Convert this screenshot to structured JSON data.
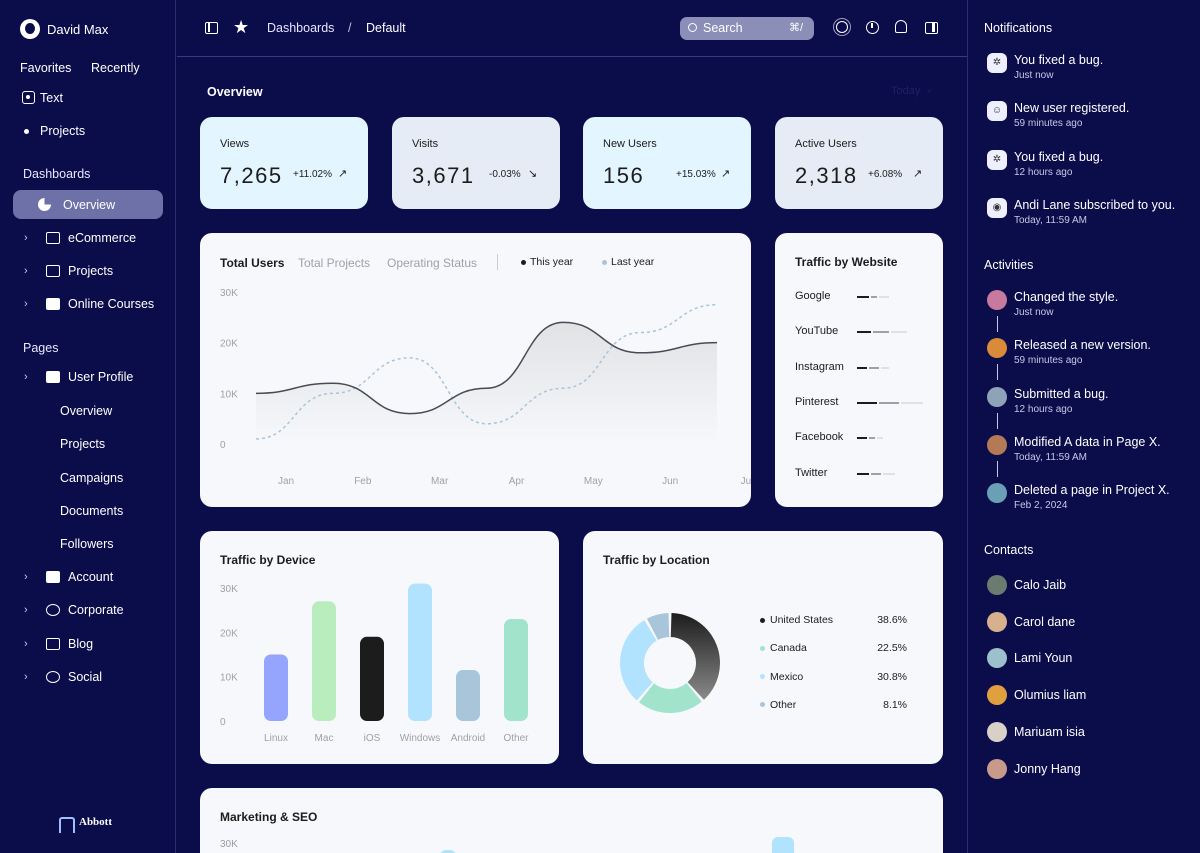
{
  "user": {
    "name": "David Max"
  },
  "sidebar": {
    "tabs": [
      "Favorites",
      "Recently"
    ],
    "favorites": [
      "Text",
      "Projects"
    ],
    "dash_title": "Dashboards",
    "dash_items": [
      "Overview",
      "eCommerce",
      "Projects",
      "Online Courses"
    ],
    "pages_title": "Pages",
    "pages_items": [
      "User Profile",
      "Overview",
      "Projects",
      "Campaigns",
      "Documents",
      "Followers",
      "Account",
      "Corporate",
      "Blog",
      "Social"
    ],
    "brand": "Abbott"
  },
  "topbar": {
    "crumb1": "Dashboards",
    "sep": "/",
    "crumb2": "Default",
    "search": "Search",
    "shortcut": "⌘/"
  },
  "overview": {
    "title": "Overview",
    "range": "Today"
  },
  "stats": [
    {
      "label": "Views",
      "value": "7,265",
      "change": "+11.02%",
      "trend": "up",
      "bg": "#e3f5ff"
    },
    {
      "label": "Visits",
      "value": "3,671",
      "change": "-0.03%",
      "trend": "down",
      "bg": "#e5ecf6"
    },
    {
      "label": "New Users",
      "value": "156",
      "change": "+15.03%",
      "trend": "up",
      "bg": "#e3f5ff"
    },
    {
      "label": "Active Users",
      "value": "2,318",
      "change": "+6.08%",
      "trend": "up",
      "bg": "#e5ecf6"
    }
  ],
  "users_chart": {
    "tabs": [
      "Total Users",
      "Total Projects",
      "Operating Status"
    ],
    "legend": [
      "This year",
      "Last year"
    ]
  },
  "website": {
    "title": "Traffic by Website",
    "sites": [
      "Google",
      "YouTube",
      "Instagram",
      "Pinterest",
      "Facebook",
      "Twitter"
    ]
  },
  "device": {
    "title": "Traffic by Device"
  },
  "location": {
    "title": "Traffic by Location",
    "rows": [
      {
        "name": "United States",
        "pct": "38.6%",
        "color": "#1c1c1c"
      },
      {
        "name": "Canada",
        "pct": "22.5%",
        "color": "#a1e3cb"
      },
      {
        "name": "Mexico",
        "pct": "30.8%",
        "color": "#b1e3ff"
      },
      {
        "name": "Other",
        "pct": "8.1%",
        "color": "#a8c5da"
      }
    ]
  },
  "seo": {
    "title": "Marketing & SEO",
    "ytick": "30K"
  },
  "notifications": {
    "title": "Notifications",
    "items": [
      {
        "text": "You fixed a bug.",
        "time": "Just now",
        "icon": "bug-icon"
      },
      {
        "text": "New user registered.",
        "time": "59 minutes ago",
        "icon": "user-icon"
      },
      {
        "text": "You fixed a bug.",
        "time": "12 hours ago",
        "icon": "bug-icon"
      },
      {
        "text": "Andi Lane subscribed to you.",
        "time": "Today, 11:59 AM",
        "icon": "broadcast-icon"
      }
    ]
  },
  "activities": {
    "title": "Activities",
    "items": [
      {
        "text": "Changed the style.",
        "time": "Just now",
        "color": "#c77a9e"
      },
      {
        "text": "Released a new version.",
        "time": "59 minutes ago",
        "color": "#d98b3a"
      },
      {
        "text": "Submitted a bug.",
        "time": "12 hours ago",
        "color": "#8ea2b8"
      },
      {
        "text": "Modified A data in Page X.",
        "time": "Today, 11:59 AM",
        "color": "#b37a55"
      },
      {
        "text": "Deleted a page in Project X.",
        "time": "Feb 2, 2024",
        "color": "#6aa0b5"
      }
    ]
  },
  "contacts": {
    "title": "Contacts",
    "items": [
      {
        "name": "Calo Jaib",
        "color": "#6b7b70"
      },
      {
        "name": "Carol dane",
        "color": "#d7b08e"
      },
      {
        "name": "Lami Youn",
        "color": "#9cc0cc"
      },
      {
        "name": "Olumius liam",
        "color": "#e0a040"
      },
      {
        "name": "Mariuam isia",
        "color": "#d9d0c8"
      },
      {
        "name": "Jonny Hang",
        "color": "#c79a8a"
      }
    ]
  },
  "chart_data": [
    {
      "type": "line",
      "title": "Total Users",
      "x": [
        "Jan",
        "Feb",
        "Mar",
        "Apr",
        "May",
        "Jun",
        "Jul"
      ],
      "ylim": [
        0,
        30000
      ],
      "yticks": [
        "0",
        "10K",
        "20K",
        "30K"
      ],
      "series": [
        {
          "name": "This year",
          "values": [
            10000,
            12000,
            6000,
            11000,
            24000,
            18000,
            20000
          ]
        },
        {
          "name": "Last year",
          "values": [
            1000,
            10000,
            17000,
            4000,
            11000,
            22000,
            27500
          ]
        }
      ]
    },
    {
      "type": "bar",
      "title": "Traffic by Device",
      "categories": [
        "Linux",
        "Mac",
        "iOS",
        "Windows",
        "Android",
        "Other"
      ],
      "values": [
        15000,
        27000,
        19000,
        31000,
        11500,
        23000
      ],
      "colors": [
        "#95a4fc",
        "#baedbd",
        "#1c1c1c",
        "#b1e3ff",
        "#a8c5da",
        "#a1e3cb"
      ],
      "ylim": [
        0,
        30000
      ],
      "yticks": [
        "0",
        "10K",
        "20K",
        "30K"
      ]
    },
    {
      "type": "pie",
      "title": "Traffic by Location",
      "categories": [
        "United States",
        "Canada",
        "Mexico",
        "Other"
      ],
      "values": [
        38.6,
        22.5,
        30.8,
        8.1
      ]
    }
  ]
}
